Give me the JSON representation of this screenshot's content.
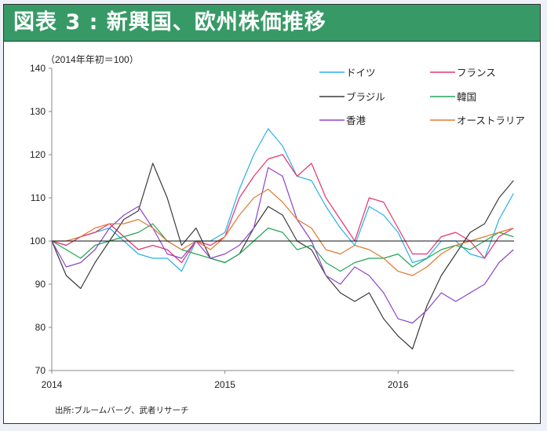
{
  "header": {
    "title": "図表 3 : 新興国、欧州株価推移"
  },
  "chart_data": {
    "type": "line",
    "title": "図表 3 : 新興国、欧州株価推移",
    "ylabel": "（2014年年初＝100）",
    "xlabel": "",
    "source": "出所:ブルームバーグ、武者リサーチ",
    "ylim": [
      70,
      140
    ],
    "yticks": [
      70,
      80,
      90,
      100,
      110,
      120,
      130,
      140
    ],
    "xlim": [
      2014,
      2016.67
    ],
    "xticks": [
      2014,
      2015,
      2016
    ],
    "xtick_labels": [
      "2014",
      "2015",
      "2016"
    ],
    "reference_line": 100,
    "legend_position": "top-right",
    "x_start": 2014,
    "x_step_months": 1,
    "series": [
      {
        "name": "ドイツ",
        "color": "#2ab0e8",
        "values": [
          100,
          99,
          101,
          102,
          103,
          100,
          97,
          96,
          96,
          93,
          100,
          100,
          102,
          112,
          120,
          126,
          122,
          115,
          114,
          108,
          103,
          99,
          108,
          106,
          102,
          95,
          96,
          100,
          100,
          97,
          96,
          105,
          111
        ]
      },
      {
        "name": "フランス",
        "color": "#e8336e",
        "values": [
          100,
          99,
          101,
          102,
          104,
          101,
          98,
          99,
          98,
          95,
          100,
          99,
          101,
          110,
          115,
          119,
          120,
          115,
          118,
          110,
          105,
          100,
          110,
          109,
          103,
          97,
          97,
          101,
          102,
          100,
          96,
          101,
          103
        ]
      },
      {
        "name": "ブラジル",
        "color": "#3a3a3a",
        "values": [
          100,
          92,
          89,
          95,
          100,
          105,
          107,
          118,
          110,
          99,
          103,
          96,
          95,
          97,
          103,
          108,
          106,
          100,
          98,
          92,
          88,
          86,
          88,
          82,
          78,
          75,
          85,
          92,
          97,
          102,
          104,
          110,
          114
        ]
      },
      {
        "name": "韓国",
        "color": "#22a655",
        "values": [
          100,
          98,
          96,
          99,
          100,
          101,
          102,
          104,
          100,
          98,
          97,
          96,
          95,
          97,
          100,
          103,
          102,
          98,
          99,
          95,
          93,
          95,
          96,
          96,
          97,
          94,
          96,
          98,
          99,
          98,
          100,
          102,
          101
        ]
      },
      {
        "name": "香港",
        "color": "#8e44c8",
        "values": [
          100,
          94,
          95,
          98,
          103,
          106,
          108,
          103,
          97,
          96,
          100,
          96,
          97,
          99,
          103,
          117,
          115,
          105,
          100,
          92,
          90,
          94,
          92,
          88,
          82,
          81,
          84,
          88,
          86,
          88,
          90,
          95,
          98
        ]
      },
      {
        "name": "オーストラリア",
        "color": "#e07a30",
        "values": [
          100,
          100,
          101,
          103,
          104,
          104,
          105,
          103,
          100,
          98,
          100,
          98,
          101,
          106,
          110,
          112,
          109,
          105,
          103,
          98,
          97,
          99,
          98,
          96,
          93,
          92,
          94,
          97,
          99,
          100,
          101,
          102,
          103
        ]
      }
    ]
  }
}
